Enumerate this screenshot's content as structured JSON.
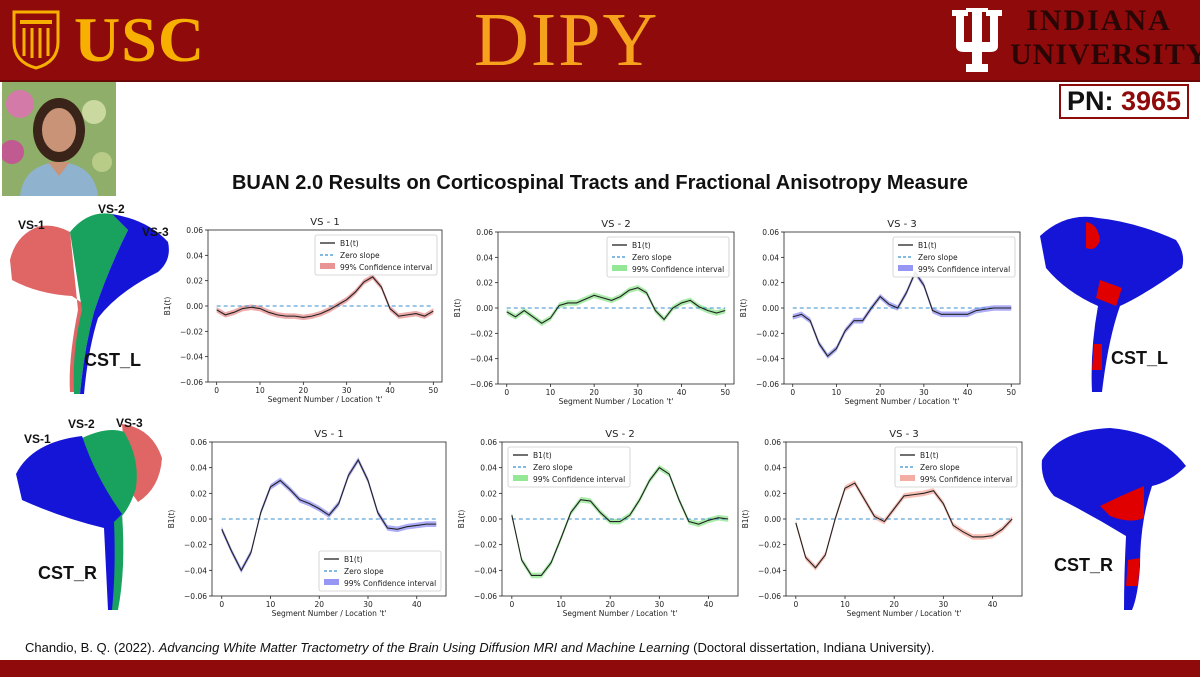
{
  "header": {
    "left_logo": "USC",
    "center_title": "DIPY",
    "right_logo_line1": "INDIANA",
    "right_logo_line2": "UNIVERSITY"
  },
  "pn": {
    "label": "PN:",
    "number": "3965"
  },
  "title": "BUAN 2.0 Results on Corticospinal Tracts and Fractional Anisotropy Measure",
  "brains": {
    "top_left": {
      "label": "CST_L",
      "vs": [
        "VS-1",
        "VS-2",
        "VS-3"
      ]
    },
    "bottom_left": {
      "label": "CST_R",
      "vs": [
        "VS-1",
        "VS-2",
        "VS-3"
      ]
    },
    "top_right": {
      "label": "CST_L"
    },
    "bottom_right": {
      "label": "CST_R"
    }
  },
  "colors": {
    "vs1": "#e06666",
    "vs2": "#19a15e",
    "vs3": "#1515d8",
    "highlight": "#e00000",
    "banner": "#8f0b0b",
    "gold": "#f7b000"
  },
  "citation": {
    "prefix": "Chandio, B. Q. (2022). ",
    "title_italic": "Advancing White Matter Tractometry of the Brain Using Diffusion MRI and Machine Learning",
    "suffix": " (Doctoral dissertation, Indiana University)."
  },
  "chart_data": [
    {
      "type": "line",
      "title": "VS - 1",
      "xlabel": "Segment Number / Location 't'",
      "ylabel": "B1(t)",
      "xlim": [
        -2,
        52
      ],
      "ylim": [
        -0.06,
        0.06
      ],
      "xticks": [
        0,
        10,
        20,
        30,
        40,
        50
      ],
      "yticks": [
        -0.06,
        -0.04,
        -0.02,
        0.0,
        0.02,
        0.04,
        0.06
      ],
      "legend": [
        "B1(t)",
        "Zero slope",
        "99% Confidence interval"
      ],
      "legend_loc": "top-right",
      "ci_color": "#e06666",
      "x": [
        0,
        2,
        4,
        6,
        8,
        10,
        12,
        14,
        16,
        18,
        20,
        22,
        24,
        26,
        28,
        30,
        32,
        34,
        36,
        38,
        40,
        42,
        44,
        46,
        48,
        50
      ],
      "y": [
        -0.003,
        -0.007,
        -0.005,
        -0.002,
        -0.001,
        -0.002,
        -0.005,
        -0.007,
        -0.008,
        -0.008,
        -0.009,
        -0.008,
        -0.006,
        -0.003,
        0.001,
        0.005,
        0.011,
        0.019,
        0.023,
        0.015,
        -0.002,
        -0.008,
        -0.007,
        -0.006,
        -0.008,
        -0.004
      ]
    },
    {
      "type": "line",
      "title": "VS - 2",
      "xlabel": "Segment Number / Location 't'",
      "ylabel": "B1(t)",
      "xlim": [
        -2,
        52
      ],
      "ylim": [
        -0.06,
        0.06
      ],
      "xticks": [
        0,
        10,
        20,
        30,
        40,
        50
      ],
      "yticks": [
        -0.06,
        -0.04,
        -0.02,
        0.0,
        0.02,
        0.04,
        0.06
      ],
      "legend": [
        "B1(t)",
        "Zero slope",
        "99% Confidence interval"
      ],
      "legend_loc": "top-right",
      "ci_color": "#66dd66",
      "x": [
        0,
        2,
        4,
        6,
        8,
        10,
        12,
        14,
        16,
        18,
        20,
        22,
        24,
        26,
        28,
        30,
        32,
        34,
        36,
        38,
        40,
        42,
        44,
        46,
        48,
        50
      ],
      "y": [
        -0.003,
        -0.007,
        -0.002,
        -0.007,
        -0.012,
        -0.008,
        0.002,
        0.004,
        0.004,
        0.007,
        0.01,
        0.008,
        0.006,
        0.009,
        0.014,
        0.016,
        0.012,
        -0.002,
        -0.009,
        0.0,
        0.004,
        0.006,
        0.001,
        -0.002,
        -0.004,
        -0.002
      ]
    },
    {
      "type": "line",
      "title": "VS - 3",
      "xlabel": "Segment Number / Location 't'",
      "ylabel": "B1(t)",
      "xlim": [
        -2,
        52
      ],
      "ylim": [
        -0.06,
        0.06
      ],
      "xticks": [
        0,
        10,
        20,
        30,
        40,
        50
      ],
      "yticks": [
        -0.06,
        -0.04,
        -0.02,
        0.0,
        0.02,
        0.04,
        0.06
      ],
      "legend": [
        "B1(t)",
        "Zero slope",
        "99% Confidence interval"
      ],
      "legend_loc": "top-right",
      "ci_color": "#6a6af0",
      "x": [
        0,
        2,
        4,
        6,
        8,
        10,
        12,
        14,
        16,
        18,
        20,
        22,
        24,
        26,
        28,
        30,
        32,
        34,
        36,
        38,
        40,
        42,
        44,
        46,
        48,
        50
      ],
      "y": [
        -0.007,
        -0.005,
        -0.01,
        -0.028,
        -0.038,
        -0.032,
        -0.018,
        -0.01,
        -0.01,
        0.0,
        0.009,
        0.003,
        0.0,
        0.012,
        0.028,
        0.018,
        -0.002,
        -0.005,
        -0.005,
        -0.005,
        -0.005,
        -0.002,
        -0.001,
        0.0,
        0.0,
        0.0
      ]
    },
    {
      "type": "line",
      "title": "VS - 1",
      "xlabel": "Segment Number / Location 't'",
      "ylabel": "B1(t)",
      "xlim": [
        -2,
        46
      ],
      "ylim": [
        -0.06,
        0.06
      ],
      "xticks": [
        0,
        10,
        20,
        30,
        40
      ],
      "yticks": [
        -0.06,
        -0.04,
        -0.02,
        0.0,
        0.02,
        0.04,
        0.06
      ],
      "legend": [
        "B1(t)",
        "Zero slope",
        "99% Confidence interval"
      ],
      "legend_loc": "bottom-right",
      "ci_color": "#6a6af0",
      "x": [
        0,
        2,
        4,
        6,
        8,
        10,
        12,
        14,
        16,
        18,
        20,
        22,
        24,
        26,
        28,
        30,
        32,
        34,
        36,
        38,
        40,
        42,
        44
      ],
      "y": [
        -0.008,
        -0.025,
        -0.04,
        -0.026,
        0.005,
        0.025,
        0.03,
        0.023,
        0.015,
        0.012,
        0.008,
        0.003,
        0.012,
        0.034,
        0.046,
        0.03,
        0.005,
        -0.007,
        -0.008,
        -0.006,
        -0.005,
        -0.004,
        -0.004
      ]
    },
    {
      "type": "line",
      "title": "VS - 2",
      "xlabel": "Segment Number / Location 't'",
      "ylabel": "B1(t)",
      "xlim": [
        -2,
        46
      ],
      "ylim": [
        -0.06,
        0.06
      ],
      "xticks": [
        0,
        10,
        20,
        30,
        40
      ],
      "yticks": [
        -0.06,
        -0.04,
        -0.02,
        0.0,
        0.02,
        0.04,
        0.06
      ],
      "legend": [
        "B1(t)",
        "Zero slope",
        "99% Confidence interval"
      ],
      "legend_loc": "top-left",
      "ci_color": "#66dd66",
      "x": [
        0,
        2,
        4,
        6,
        8,
        10,
        12,
        14,
        16,
        18,
        20,
        22,
        24,
        26,
        28,
        30,
        32,
        34,
        36,
        38,
        40,
        42,
        44
      ],
      "y": [
        0.003,
        -0.032,
        -0.044,
        -0.044,
        -0.034,
        -0.015,
        0.005,
        0.015,
        0.014,
        0.005,
        -0.002,
        -0.002,
        0.003,
        0.015,
        0.03,
        0.04,
        0.035,
        0.015,
        -0.002,
        -0.004,
        -0.001,
        0.001,
        0.0
      ]
    },
    {
      "type": "line",
      "title": "VS - 3",
      "xlabel": "Segment Number / Location 't'",
      "ylabel": "B1(t)",
      "xlim": [
        -2,
        46
      ],
      "ylim": [
        -0.06,
        0.06
      ],
      "xticks": [
        0,
        10,
        20,
        30,
        40
      ],
      "yticks": [
        -0.06,
        -0.04,
        -0.02,
        0.0,
        0.02,
        0.04,
        0.06
      ],
      "legend": [
        "B1(t)",
        "Zero slope",
        "99% Confidence interval"
      ],
      "legend_loc": "top-right",
      "ci_color": "#f08a7a",
      "x": [
        0,
        2,
        4,
        6,
        8,
        10,
        12,
        14,
        16,
        18,
        20,
        22,
        24,
        26,
        28,
        30,
        32,
        34,
        36,
        38,
        40,
        42,
        44
      ],
      "y": [
        -0.003,
        -0.03,
        -0.038,
        -0.028,
        0.0,
        0.024,
        0.028,
        0.015,
        0.002,
        -0.002,
        0.008,
        0.018,
        0.019,
        0.02,
        0.022,
        0.012,
        -0.005,
        -0.01,
        -0.014,
        -0.014,
        -0.013,
        -0.008,
        0.0
      ]
    }
  ]
}
